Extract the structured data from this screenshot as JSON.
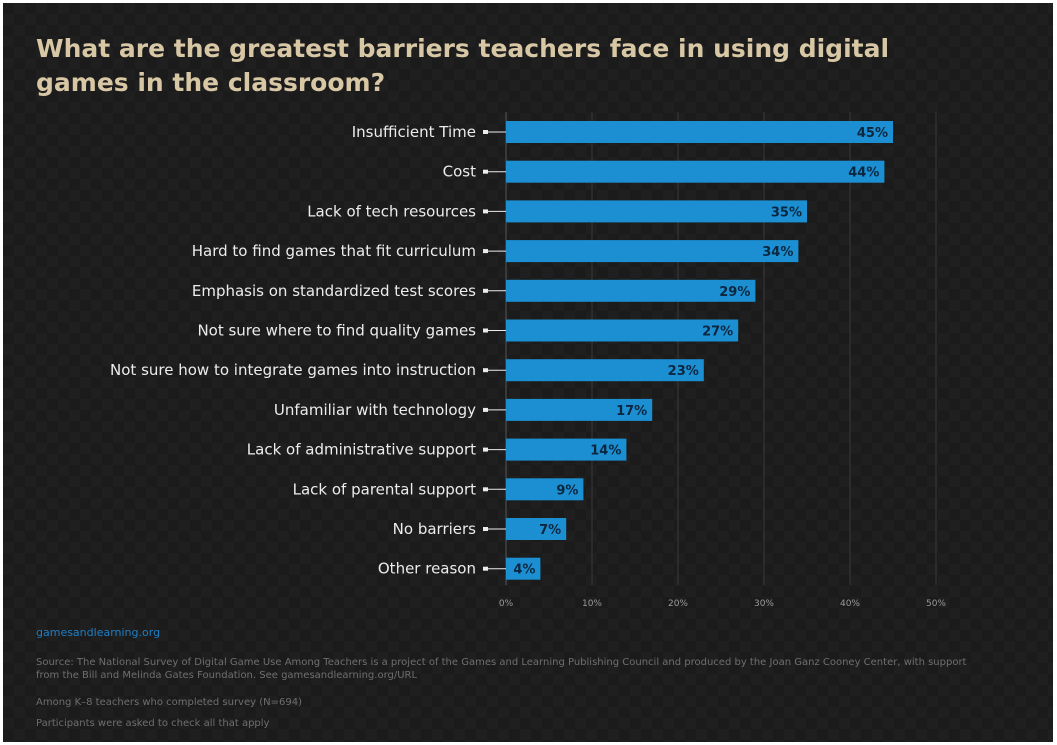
{
  "chart_data": {
    "type": "bar",
    "orientation": "horizontal",
    "title": "What are the greatest barriers teachers face in using digital games in the classroom?",
    "categories": [
      "Insufficient Time",
      "Cost",
      "Lack of tech resources",
      "Hard to find games that fit curriculum",
      "Emphasis on standardized test scores",
      "Not sure where to find quality games",
      "Not sure how to integrate games into instruction",
      "Unfamiliar with technology",
      "Lack of administrative support",
      "Lack of parental support",
      "No barriers",
      "Other reason"
    ],
    "values": [
      45,
      44,
      35,
      34,
      29,
      27,
      23,
      17,
      14,
      9,
      7,
      4
    ],
    "data_labels": [
      "45%",
      "44%",
      "35%",
      "34%",
      "29%",
      "27%",
      "23%",
      "17%",
      "14%",
      "9%",
      "7%",
      "4%"
    ],
    "x_ticks": [
      0,
      10,
      20,
      30,
      40,
      50
    ],
    "x_tick_labels": [
      "0%",
      "10%",
      "20%",
      "30%",
      "40%",
      "50%"
    ],
    "xlim": [
      0,
      50
    ],
    "grid": true,
    "bar_color": "#1b8fd2",
    "title_color": "#d8c7a4"
  },
  "footer": {
    "site": "gamesandlearning.org",
    "source": "Source: The National Survey of Digital Game Use Among Teachers is a project of the Games and Learning Publishing Council and produced by the Joan Ganz Cooney Center, with support from the Bill and Melinda Gates Foundation. See gamesandlearning.org/URL",
    "base": "Among K–8 teachers who completed survey (N=694)",
    "note": "Participants were asked to check all that apply"
  }
}
